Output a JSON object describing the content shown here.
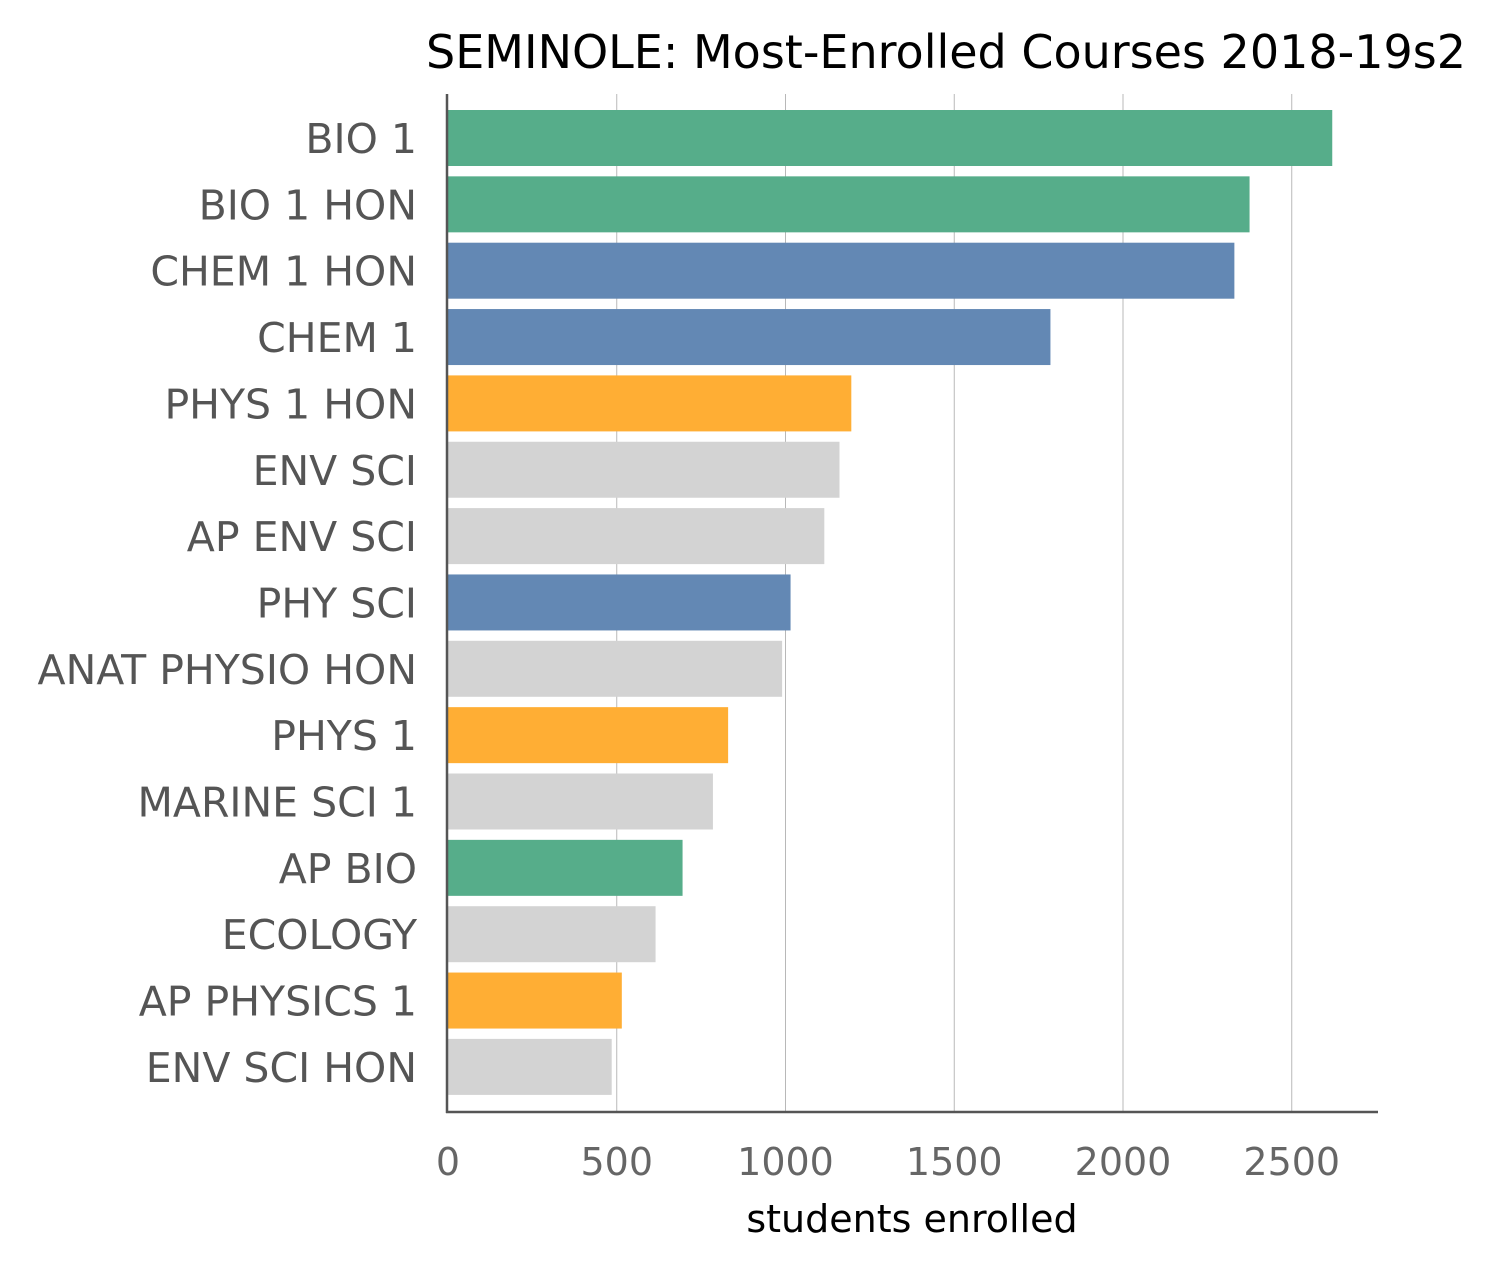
{
  "chart_data": {
    "type": "bar",
    "orientation": "horizontal",
    "title": "SEMINOLE: Most-Enrolled Courses 2018-19s2",
    "xlabel": "students enrolled",
    "ylabel": "",
    "xlim": [
      0,
      2750
    ],
    "xticks": [
      0,
      500,
      1000,
      1500,
      2000,
      2500
    ],
    "grid": true,
    "categories": [
      "BIO 1",
      "BIO 1 HON",
      "CHEM 1 HON",
      "CHEM 1",
      "PHYS 1 HON",
      "ENV SCI",
      "AP ENV SCI",
      "PHY SCI",
      "ANAT PHYSIO HON",
      "PHYS 1",
      "MARINE SCI 1",
      "AP BIO",
      "ECOLOGY",
      "AP PHYSICS 1",
      "ENV SCI HON"
    ],
    "values": [
      2620,
      2375,
      2330,
      1785,
      1195,
      1160,
      1115,
      1015,
      990,
      830,
      785,
      695,
      615,
      515,
      485
    ],
    "colors": [
      "#56ad8a",
      "#56ad8a",
      "#6388b4",
      "#6388b4",
      "#ffae34",
      "#d3d3d3",
      "#d3d3d3",
      "#6388b4",
      "#d3d3d3",
      "#ffae34",
      "#d3d3d3",
      "#56ad8a",
      "#d3d3d3",
      "#ffae34",
      "#d3d3d3"
    ]
  }
}
